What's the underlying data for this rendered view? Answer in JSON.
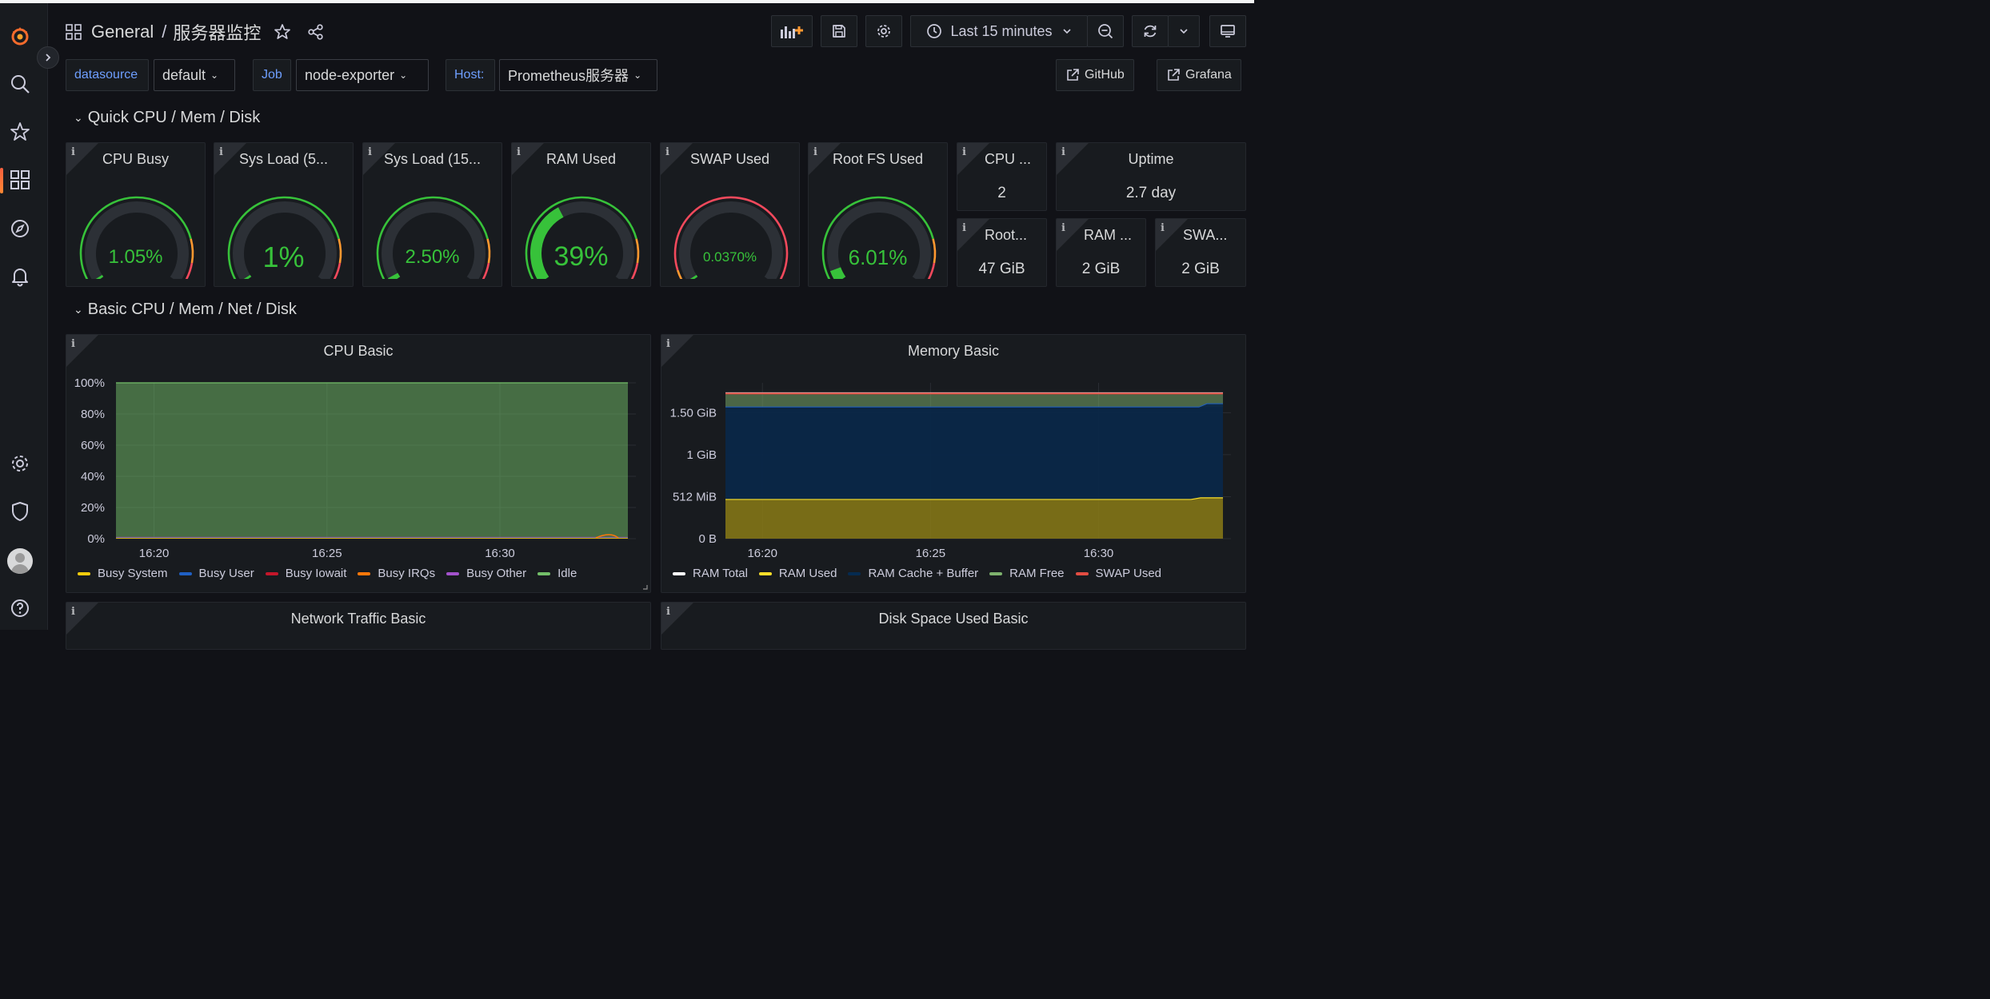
{
  "header": {
    "folder": "General",
    "dashboard": "服务器监控",
    "time_range": "Last 15 minutes"
  },
  "variables": [
    {
      "label": "datasource",
      "value": "default"
    },
    {
      "label": "Job",
      "value": "node-exporter"
    },
    {
      "label": "Host:",
      "value": "Prometheus服务器"
    }
  ],
  "links": {
    "github": "GitHub",
    "grafana": "Grafana"
  },
  "rows": {
    "quick": "Quick CPU / Mem / Disk",
    "basic": "Basic CPU / Mem / Net / Disk"
  },
  "gauges": [
    {
      "title": "CPU Busy",
      "value": "1.05%",
      "fraction": 0.0105
    },
    {
      "title": "Sys Load (5...",
      "value": "1%",
      "fraction": 0.01
    },
    {
      "title": "Sys Load (15...",
      "value": "2.50%",
      "fraction": 0.025
    },
    {
      "title": "RAM Used",
      "value": "39%",
      "fraction": 0.39
    },
    {
      "title": "SWAP Used",
      "value": "0.0370%",
      "fraction": 0.00037
    },
    {
      "title": "Root FS Used",
      "value": "6.01%",
      "fraction": 0.0601
    }
  ],
  "stats": [
    {
      "title": "CPU ...",
      "value": "2"
    },
    {
      "title": "Uptime",
      "value": "2.7 day"
    },
    {
      "title": "Root...",
      "value": "47 GiB"
    },
    {
      "title": "RAM ...",
      "value": "2 GiB"
    },
    {
      "title": "SWA...",
      "value": "2 GiB"
    }
  ],
  "colors": {
    "green": "#37c23a",
    "orange": "#ff9830",
    "red": "#f2495c",
    "accent_blue": "#6e9fff"
  },
  "panels": {
    "network": "Network Traffic Basic",
    "disk": "Disk Space Used Basic"
  },
  "chart_data": [
    {
      "type": "area",
      "title": "CPU Basic",
      "x": [
        "16:20",
        "16:25",
        "16:30"
      ],
      "y_ticks": [
        "0%",
        "20%",
        "40%",
        "60%",
        "80%",
        "100%"
      ],
      "ylim": [
        0,
        100
      ],
      "series": [
        {
          "name": "Busy System",
          "color": "#f2cc0c",
          "values": [
            0.5,
            0.5,
            0.5
          ]
        },
        {
          "name": "Busy User",
          "color": "#1f60c4",
          "values": [
            0.5,
            0.5,
            0.5
          ]
        },
        {
          "name": "Busy Iowait",
          "color": "#c4162a",
          "values": [
            0.1,
            0.1,
            0.1
          ]
        },
        {
          "name": "Busy IRQs",
          "color": "#ff780a",
          "values": [
            0,
            0,
            0
          ]
        },
        {
          "name": "Busy Other",
          "color": "#a352cc",
          "values": [
            0,
            0,
            0
          ]
        },
        {
          "name": "Idle",
          "color": "#73bf69",
          "values": [
            99,
            99,
            99
          ]
        }
      ],
      "legend": "bottom"
    },
    {
      "type": "area",
      "title": "Memory Basic",
      "x": [
        "16:20",
        "16:25",
        "16:30"
      ],
      "y_ticks": [
        "0 B",
        "512 MiB",
        "1 GiB",
        "1.50 GiB"
      ],
      "series": [
        {
          "name": "RAM Total",
          "color": "#fcfcfc",
          "values": [
            "1.74 GiB",
            "1.74 GiB",
            "1.74 GiB"
          ]
        },
        {
          "name": "RAM Used",
          "color": "#fade2a",
          "values": [
            "470 MiB",
            "475 MiB",
            "500 MiB"
          ]
        },
        {
          "name": "RAM Cache + Buffer",
          "color": "#052b51",
          "values": [
            "1.1 GiB",
            "1.1 GiB",
            "1.1 GiB"
          ]
        },
        {
          "name": "RAM Free",
          "color": "#7eb26d",
          "values": [
            "0.16 GiB",
            "0.15 GiB",
            "0.13 GiB"
          ]
        },
        {
          "name": "SWAP Used",
          "color": "#e24d42",
          "values": [
            "0 B",
            "0 B",
            "0 B"
          ]
        }
      ],
      "legend": "bottom"
    }
  ]
}
